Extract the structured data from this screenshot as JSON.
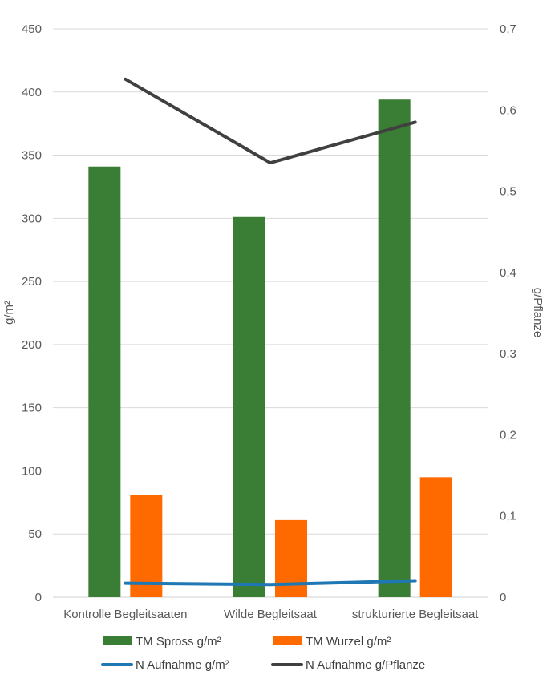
{
  "chart_data": {
    "type": "bar",
    "categories": [
      "Kontrolle Begleitsaaten",
      "Wilde Begleitsaat",
      "strukturierte Begleitsaat"
    ],
    "series": [
      {
        "name": "TM Spross g/m²",
        "type": "bar",
        "axis": "left",
        "color": "#3A7D34",
        "values": [
          341,
          301,
          394
        ]
      },
      {
        "name": "TM Wurzel g/m²",
        "type": "bar",
        "axis": "left",
        "color": "#FF6A00",
        "values": [
          81,
          61,
          95
        ]
      },
      {
        "name": "N Aufnahme  g/m²",
        "type": "line",
        "axis": "left",
        "color": "#1F77B4",
        "values": [
          11,
          10,
          13
        ]
      },
      {
        "name": "N Aufnahme  g/Pflanze",
        "type": "line",
        "axis": "right",
        "color": "#404040",
        "values": [
          0.638,
          0.535,
          0.585
        ]
      }
    ],
    "ylabel": "g/m²",
    "y2label": "g/Pflanze",
    "ylim": [
      0,
      450
    ],
    "y2lim": [
      0,
      0.7
    ],
    "yticks": [
      0,
      50,
      100,
      150,
      200,
      250,
      300,
      350,
      400,
      450
    ],
    "yticklabels": [
      "0",
      "50",
      "100",
      "150",
      "200",
      "250",
      "300",
      "350",
      "400",
      "450"
    ],
    "y2ticks": [
      0,
      0.1,
      0.2,
      0.3,
      0.4,
      0.5,
      0.6,
      0.7
    ],
    "y2ticklabels": [
      "0",
      "0,1",
      "0,2",
      "0,3",
      "0,4",
      "0,5",
      "0,6",
      "0,7"
    ],
    "grid": true,
    "legend_position": "bottom"
  }
}
